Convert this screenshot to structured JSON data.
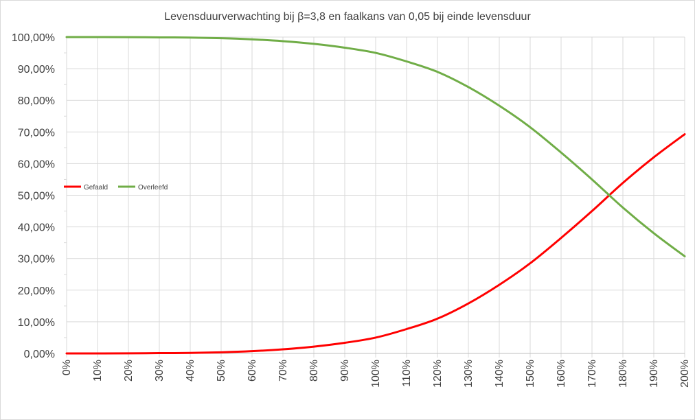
{
  "chart_data": {
    "type": "line",
    "title": "Levensduurverwachting bij β=3,8 en faalkans van 0,05 bij einde levensduur",
    "xlabel": "",
    "ylabel": "",
    "ylim": [
      0,
      100
    ],
    "xlim": [
      0,
      200
    ],
    "grid": true,
    "legend_position": "left",
    "y_ticks": [
      "0,00%",
      "10,00%",
      "20,00%",
      "30,00%",
      "40,00%",
      "50,00%",
      "60,00%",
      "70,00%",
      "80,00%",
      "90,00%",
      "100,00%"
    ],
    "x_ticks": [
      "0%",
      "10%",
      "20%",
      "30%",
      "40%",
      "50%",
      "60%",
      "70%",
      "80%",
      "90%",
      "100%",
      "110%",
      "120%",
      "130%",
      "140%",
      "150%",
      "160%",
      "170%",
      "180%",
      "190%",
      "200%"
    ],
    "x": [
      0,
      10,
      20,
      30,
      40,
      50,
      60,
      70,
      80,
      90,
      100,
      110,
      120,
      130,
      140,
      150,
      160,
      170,
      180,
      190,
      200
    ],
    "series": [
      {
        "name": "Gefaald",
        "color": "#ff0000",
        "values": [
          0.0,
          0.0,
          0.02,
          0.1,
          0.15,
          0.36,
          0.72,
          1.29,
          2.15,
          3.36,
          5.0,
          7.7,
          11.0,
          15.8,
          21.7,
          28.5,
          36.5,
          45.0,
          53.9,
          62.0,
          69.3
        ]
      },
      {
        "name": "Overleefd",
        "color": "#70ad47",
        "values": [
          100.0,
          100.0,
          99.98,
          99.9,
          99.85,
          99.64,
          99.28,
          98.71,
          97.85,
          96.64,
          95.0,
          92.3,
          89.0,
          84.2,
          78.3,
          71.5,
          63.5,
          55.0,
          46.1,
          38.0,
          30.7
        ]
      }
    ]
  }
}
